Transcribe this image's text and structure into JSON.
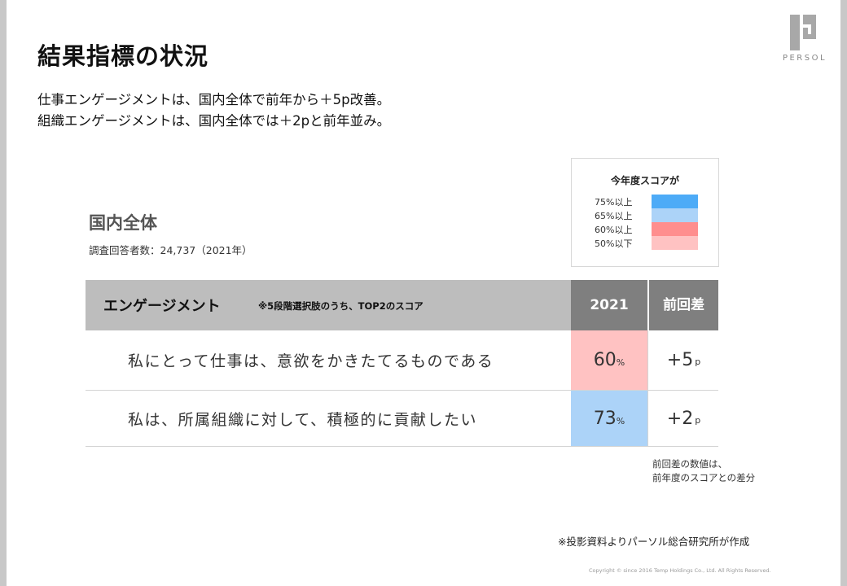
{
  "brand": {
    "logo_text": "PERSOL"
  },
  "page_title": "結果指標の状況",
  "summary": [
    "仕事エンゲージメントは、国内全体で前年から＋5p改善。",
    "組織エンゲージメントは、国内全体では＋2pと前年並み。"
  ],
  "legend": {
    "title": "今年度スコアが",
    "items": [
      {
        "label": "75%以上",
        "color": "#4dabf7"
      },
      {
        "label": "65%以上",
        "color": "#acd3f8"
      },
      {
        "label": "60%以上",
        "color": "#ff8e8e"
      },
      {
        "label": "50%以下",
        "color": "#ffc2c2"
      }
    ]
  },
  "section": {
    "title": "国内全体",
    "respondents": "調査回答者数：24,737（2021年）"
  },
  "table": {
    "header_label": "エンゲージメント",
    "header_note": "※5段階選択肢のうち、TOP2のスコア",
    "year_header": "2021",
    "diff_header": "前回差",
    "rows": [
      {
        "question": "私にとって仕事は、意欲をかきたてるものである",
        "score": "60",
        "score_unit": "%",
        "score_color": "#ffc2c2",
        "diff": "+5",
        "diff_unit": "p"
      },
      {
        "question": "私は、所属組織に対して、積極的に貢献したい",
        "score": "73",
        "score_unit": "%",
        "score_color": "#acd3f8",
        "diff": "+2",
        "diff_unit": "p"
      }
    ]
  },
  "diff_note": [
    "前回差の数値は、",
    "前年度のスコアとの差分"
  ],
  "source_note": "※投影資料よりパーソル総合研究所が作成",
  "copyright": "Copyright © since 2016 Temp Holdings Co., Ltd. All Rights Reserved."
}
